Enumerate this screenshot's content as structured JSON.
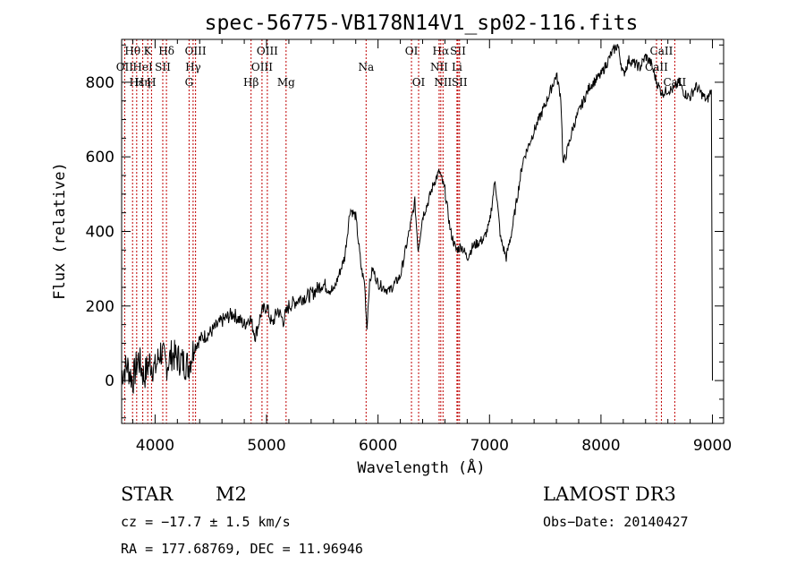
{
  "chart_data": {
    "type": "line",
    "title": "spec-56775-VB178N14V1_sp02-116.fits",
    "xlabel": "Wavelength (Å)",
    "ylabel": "Flux (relative)",
    "xlim": [
      3700,
      9100
    ],
    "ylim": [
      -115,
      915
    ],
    "x_ticks": [
      4000,
      5000,
      6000,
      7000,
      8000,
      9000
    ],
    "x_tick_labels": [
      "4000",
      "5000",
      "6000",
      "7000",
      "8000",
      "9000"
    ],
    "y_ticks": [
      0,
      200,
      400,
      600,
      800
    ],
    "y_tick_labels": [
      "0",
      "200",
      "400",
      "600",
      "800"
    ],
    "series": [
      {
        "name": "flux",
        "x": [
          3700,
          3750,
          3800,
          3850,
          3900,
          3950,
          4000,
          4050,
          4100,
          4150,
          4200,
          4250,
          4300,
          4350,
          4400,
          4500,
          4600,
          4700,
          4800,
          4850,
          4900,
          4950,
          5000,
          5050,
          5100,
          5150,
          5200,
          5300,
          5400,
          5500,
          5600,
          5700,
          5750,
          5800,
          5850,
          5880,
          5900,
          5920,
          5950,
          6000,
          6100,
          6200,
          6300,
          6330,
          6360,
          6400,
          6450,
          6500,
          6550,
          6600,
          6650,
          6700,
          6750,
          6800,
          6850,
          6900,
          6950,
          7000,
          7050,
          7100,
          7150,
          7200,
          7300,
          7400,
          7500,
          7550,
          7600,
          7640,
          7660,
          7680,
          7700,
          7750,
          7800,
          7900,
          8000,
          8100,
          8150,
          8200,
          8250,
          8300,
          8350,
          8400,
          8450,
          8500,
          8550,
          8600,
          8650,
          8700,
          8750,
          8800,
          8850,
          8900,
          8950,
          8990,
          9000
        ],
        "y": [
          20,
          40,
          0,
          60,
          10,
          50,
          30,
          80,
          40,
          70,
          60,
          50,
          40,
          90,
          110,
          130,
          160,
          180,
          150,
          170,
          120,
          180,
          200,
          150,
          190,
          160,
          200,
          220,
          230,
          260,
          240,
          330,
          460,
          440,
          300,
          260,
          140,
          250,
          300,
          260,
          240,
          280,
          430,
          480,
          350,
          440,
          480,
          530,
          560,
          510,
          400,
          350,
          360,
          330,
          360,
          370,
          380,
          420,
          540,
          380,
          330,
          400,
          590,
          670,
          740,
          780,
          820,
          760,
          580,
          600,
          620,
          680,
          720,
          790,
          820,
          880,
          900,
          820,
          860,
          850,
          840,
          870,
          850,
          800,
          770,
          780,
          780,
          800,
          770,
          760,
          790,
          770,
          750,
          780,
          0
        ]
      }
    ],
    "spectral_lines": [
      {
        "label": "Hθ",
        "x": 3798,
        "row": 0
      },
      {
        "label": "OII",
        "x": 3727,
        "row": 1
      },
      {
        "label": "Hε",
        "x": 3835,
        "row": 2
      },
      {
        "label": "K",
        "x": 3934,
        "row": 0
      },
      {
        "label": "HeI",
        "x": 3889,
        "row": 1
      },
      {
        "label": "Hη",
        "x": 3889,
        "row": 2
      },
      {
        "label": "H",
        "x": 3968,
        "row": 2
      },
      {
        "label": "SII",
        "x": 4069,
        "row": 1
      },
      {
        "label": "Hδ",
        "x": 4102,
        "row": 0
      },
      {
        "label": "OIII",
        "x": 4363,
        "row": 0
      },
      {
        "label": "Hγ",
        "x": 4341,
        "row": 1
      },
      {
        "label": "G",
        "x": 4305,
        "row": 2
      },
      {
        "label": "Hβ",
        "x": 4861,
        "row": 2
      },
      {
        "label": "OIII",
        "x": 5007,
        "row": 0
      },
      {
        "label": "OIII",
        "x": 4959,
        "row": 1
      },
      {
        "label": "Mg",
        "x": 5175,
        "row": 2
      },
      {
        "label": "Na",
        "x": 5893,
        "row": 1
      },
      {
        "label": "OI",
        "x": 6300,
        "row": 0
      },
      {
        "label": "OI",
        "x": 6364,
        "row": 2
      },
      {
        "label": "Hα",
        "x": 6563,
        "row": 0
      },
      {
        "label": "NII",
        "x": 6548,
        "row": 1
      },
      {
        "label": "NII",
        "x": 6583,
        "row": 2
      },
      {
        "label": "SII",
        "x": 6717,
        "row": 0
      },
      {
        "label": "Li",
        "x": 6708,
        "row": 1
      },
      {
        "label": "SII",
        "x": 6731,
        "row": 2
      },
      {
        "label": "CaII",
        "x": 8542,
        "row": 0
      },
      {
        "label": "CaII",
        "x": 8498,
        "row": 1
      },
      {
        "label": "CaII",
        "x": 8662,
        "row": 2
      }
    ]
  },
  "info": {
    "object_class": "STAR",
    "subclass": "M2",
    "survey": "LAMOST DR3",
    "cz": "cz = −17.7 ± 1.5 km/s",
    "obs_date": "Obs−Date: 20140427",
    "coords": "RA = 177.68769, DEC =  11.96946"
  }
}
